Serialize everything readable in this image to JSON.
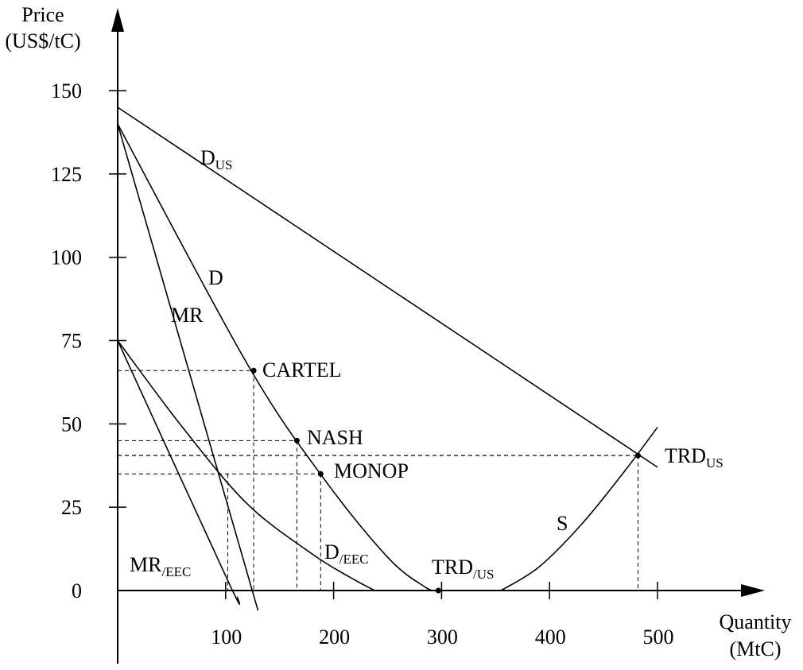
{
  "chart_data": {
    "type": "line",
    "title": "",
    "ylabel": "Price",
    "ylabel_unit": "(US$/tC)",
    "xlabel": "Quantity",
    "xlabel_unit": "(MtC)",
    "xlim": [
      0,
      560
    ],
    "ylim": [
      0,
      160
    ],
    "xticks": [
      100,
      200,
      300,
      400,
      500
    ],
    "xtick_labels": [
      "100",
      "200",
      "300",
      "400",
      "500"
    ],
    "yticks": [
      0,
      25,
      50,
      75,
      100,
      125,
      150
    ],
    "ytick_labels": [
      "0",
      "25",
      "50",
      "75",
      "100",
      "125",
      "150"
    ],
    "grid": false,
    "series": [
      {
        "name": "D_US",
        "label": "D",
        "sub": "US",
        "points": [
          [
            0,
            145
          ],
          [
            500,
            37
          ]
        ]
      },
      {
        "name": "D",
        "label": "D",
        "sub": "",
        "points": [
          [
            0,
            140
          ],
          [
            120,
            68
          ],
          [
            190,
            34
          ],
          [
            250,
            10
          ],
          [
            285,
            1
          ],
          [
            296,
            0
          ]
        ]
      },
      {
        "name": "MR",
        "label": "MR",
        "sub": "",
        "points": [
          [
            0,
            140
          ],
          [
            130,
            -6
          ]
        ]
      },
      {
        "name": "D/EEC",
        "label": "D",
        "sub": "/EEC",
        "points": [
          [
            0,
            75
          ],
          [
            60,
            49
          ],
          [
            120,
            26
          ],
          [
            180,
            11
          ],
          [
            215,
            4
          ],
          [
            238,
            0
          ]
        ]
      },
      {
        "name": "MR/EEC",
        "label": "MR",
        "sub": "/EEC",
        "points": [
          [
            0,
            75
          ],
          [
            102,
            3
          ],
          [
            111,
            -2
          ]
        ]
      },
      {
        "name": "S",
        "label": "S",
        "sub": "",
        "points": [
          [
            355,
            0
          ],
          [
            390,
            7
          ],
          [
            430,
            20
          ],
          [
            470,
            36
          ],
          [
            500,
            49
          ]
        ]
      }
    ],
    "points": [
      {
        "name": "CARTEL",
        "label": "CARTEL",
        "sub": "",
        "x": 126,
        "y": 66,
        "hline": true,
        "vline": true
      },
      {
        "name": "NASH",
        "label": "NASH",
        "sub": "",
        "x": 166,
        "y": 45,
        "hline": true,
        "vline": true
      },
      {
        "name": "MONOP",
        "label": "MONOP",
        "sub": "",
        "x": 188,
        "y": 35,
        "hline": true,
        "vline": true
      },
      {
        "name": "TRD_US",
        "label": "TRD",
        "sub": "US",
        "x": 482,
        "y": 40.5,
        "hline": true,
        "vline": true
      },
      {
        "name": "TRD/US",
        "label": "TRD",
        "sub": "/US",
        "x": 297,
        "y": 0,
        "hline": false,
        "vline": false
      }
    ],
    "extra_guides": [
      {
        "type": "vline",
        "x": 102,
        "y": 35
      },
      {
        "type": "hline",
        "y": 40.5,
        "x": 482
      }
    ]
  }
}
